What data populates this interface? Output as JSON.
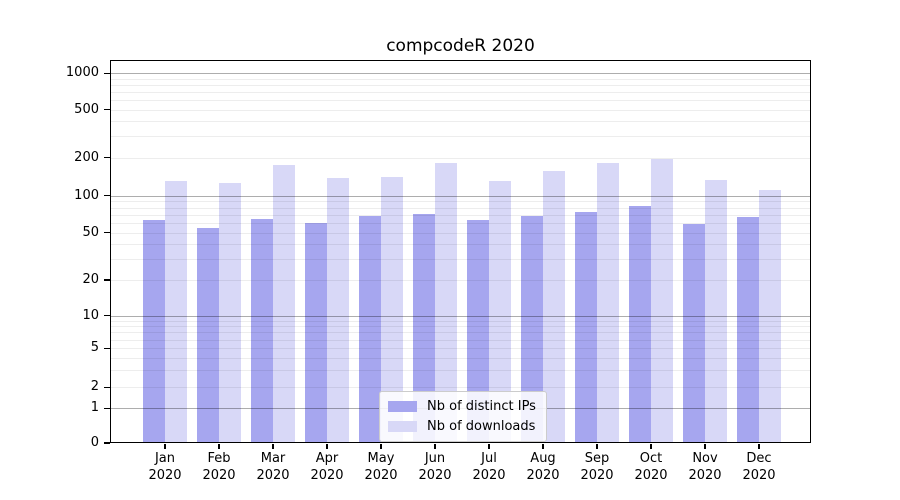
{
  "title": "compcodeR 2020",
  "chart_data": {
    "type": "bar",
    "title": "compcodeR 2020",
    "categories": [
      "Jan 2020",
      "Feb 2020",
      "Mar 2020",
      "Apr 2020",
      "May 2020",
      "Jun 2020",
      "Jul 2020",
      "Aug 2020",
      "Sep 2020",
      "Oct 2020",
      "Nov 2020",
      "Dec 2020"
    ],
    "series": [
      {
        "name": "Nb of distinct IPs",
        "color": "#a6a6ef",
        "values": [
          64,
          55,
          65,
          60,
          68,
          71,
          64,
          68,
          74,
          83,
          59,
          67
        ]
      },
      {
        "name": "Nb of downloads",
        "color": "#d8d8f7",
        "values": [
          131,
          127,
          175,
          137,
          141,
          181,
          131,
          158,
          183,
          195,
          132,
          112
        ]
      }
    ],
    "y_ticks": [
      0,
      1,
      2,
      5,
      10,
      20,
      50,
      100,
      200,
      500,
      1000
    ],
    "y_axis": {
      "scale": "log-like",
      "min": 0,
      "max": 1000
    },
    "xlabel": "",
    "ylabel": "",
    "grid": true,
    "legend_position": "lower center"
  }
}
